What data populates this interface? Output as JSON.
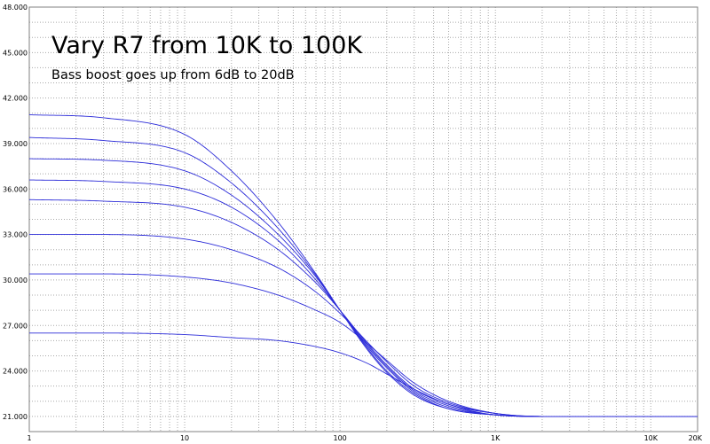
{
  "chart_data": {
    "type": "line",
    "title": "Vary R7 from 10K to 100K",
    "subtitle": "Bass boost goes up from 6dB to 20dB",
    "xlabel": "",
    "ylabel": "",
    "x_scale": "log",
    "xlim": [
      1,
      20000
    ],
    "ylim": [
      20,
      48
    ],
    "grid": true,
    "line_color": "#2b2bd8",
    "x_ticks": [
      {
        "value": 1,
        "label": "1"
      },
      {
        "value": 10,
        "label": "10"
      },
      {
        "value": 100,
        "label": "100"
      },
      {
        "value": 1000,
        "label": "1K"
      },
      {
        "value": 10000,
        "label": "10K"
      },
      {
        "value": 20000,
        "label": "20K"
      }
    ],
    "y_ticks": [
      {
        "value": 21,
        "label": "21.000"
      },
      {
        "value": 24,
        "label": "24.000"
      },
      {
        "value": 27,
        "label": "27.000"
      },
      {
        "value": 30,
        "label": "30.000"
      },
      {
        "value": 33,
        "label": "33.000"
      },
      {
        "value": 36,
        "label": "36.000"
      },
      {
        "value": 39,
        "label": "39.000"
      },
      {
        "value": 42,
        "label": "42.000"
      },
      {
        "value": 45,
        "label": "45.000"
      },
      {
        "value": 48,
        "label": "48.000"
      }
    ],
    "series": [
      {
        "x": [
          1,
          3,
          10,
          20,
          40,
          70,
          100,
          150,
          200,
          300,
          500,
          1000,
          2000,
          20000
        ],
        "y": [
          26.5,
          26.5,
          26.4,
          26.2,
          26.0,
          25.6,
          25.2,
          24.5,
          23.8,
          22.8,
          21.8,
          21.2,
          21.0,
          21.0
        ]
      },
      {
        "x": [
          1,
          3,
          10,
          20,
          40,
          70,
          100,
          150,
          200,
          300,
          500,
          1000,
          2000,
          20000
        ],
        "y": [
          30.4,
          30.4,
          30.2,
          29.8,
          29.0,
          28.0,
          27.2,
          25.8,
          24.7,
          23.2,
          22.0,
          21.2,
          21.0,
          21.0
        ]
      },
      {
        "x": [
          1,
          3,
          10,
          20,
          40,
          70,
          100,
          150,
          200,
          300,
          500,
          1000,
          2000,
          20000
        ],
        "y": [
          33.0,
          33.0,
          32.7,
          32.0,
          30.8,
          29.2,
          27.8,
          25.9,
          24.6,
          23.0,
          21.9,
          21.2,
          21.0,
          21.0
        ]
      },
      {
        "x": [
          1,
          3,
          10,
          20,
          40,
          70,
          100,
          150,
          200,
          300,
          500,
          1000,
          2000,
          20000
        ],
        "y": [
          35.3,
          35.2,
          34.8,
          33.8,
          32.0,
          29.8,
          28.0,
          25.8,
          24.4,
          22.8,
          21.8,
          21.1,
          21.0,
          21.0
        ]
      },
      {
        "x": [
          1,
          3,
          10,
          20,
          40,
          70,
          100,
          150,
          200,
          300,
          500,
          1000,
          2000,
          20000
        ],
        "y": [
          36.6,
          36.5,
          36.0,
          34.8,
          32.6,
          30.0,
          28.0,
          25.7,
          24.3,
          22.7,
          21.7,
          21.1,
          21.0,
          21.0
        ]
      },
      {
        "x": [
          1,
          3,
          10,
          20,
          40,
          70,
          100,
          150,
          200,
          300,
          500,
          1000,
          2000,
          20000
        ],
        "y": [
          38.0,
          37.9,
          37.2,
          35.6,
          33.0,
          30.2,
          28.0,
          25.6,
          24.2,
          22.6,
          21.6,
          21.1,
          21.0,
          21.0
        ]
      },
      {
        "x": [
          1,
          3,
          10,
          20,
          40,
          70,
          100,
          150,
          200,
          300,
          500,
          1000,
          2000,
          20000
        ],
        "y": [
          39.4,
          39.2,
          38.4,
          36.4,
          33.4,
          30.3,
          28.0,
          25.5,
          24.0,
          22.5,
          21.5,
          21.1,
          21.0,
          21.0
        ]
      },
      {
        "x": [
          1,
          3,
          10,
          20,
          40,
          70,
          100,
          150,
          200,
          300,
          500,
          1000,
          2000,
          20000
        ],
        "y": [
          40.9,
          40.7,
          39.6,
          37.2,
          33.8,
          30.4,
          28.0,
          25.4,
          23.9,
          22.4,
          21.5,
          21.1,
          21.0,
          21.0
        ]
      }
    ]
  }
}
